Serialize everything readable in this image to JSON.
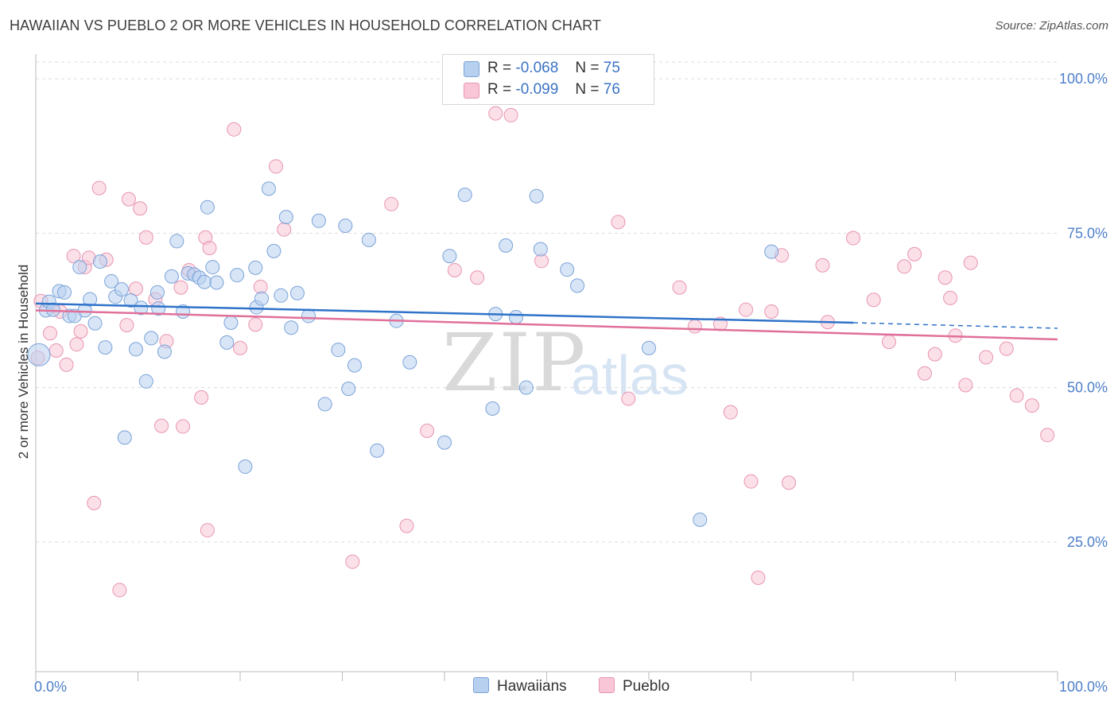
{
  "title": "HAWAIIAN VS PUEBLO 2 OR MORE VEHICLES IN HOUSEHOLD CORRELATION CHART",
  "source": "Source: ZipAtlas.com",
  "watermark": {
    "zip": "ZIP",
    "atlas": "atlas"
  },
  "legend": {
    "rows": [
      {
        "r_label": "R =",
        "r_value": "-0.068",
        "n_label": "N =",
        "n_value": "75"
      },
      {
        "r_label": "R =",
        "r_value": "-0.099",
        "n_label": "N =",
        "n_value": "76"
      }
    ]
  },
  "colors": {
    "hawaiians_fill": "#b8d0f0",
    "hawaiians_stroke": "#7aa3d8",
    "hawaiians_line": "#2f73c9",
    "pueblo_fill": "#f8c6d6",
    "pueblo_stroke": "#e894b2",
    "pueblo_line": "#e0709a",
    "tick_label": "#4d7fc9",
    "grid": "#dcdcdc"
  },
  "chart_data": {
    "type": "scatter",
    "title": "HAWAIIAN VS PUEBLO 2 OR MORE VEHICLES IN HOUSEHOLD CORRELATION CHART",
    "xlabel": "",
    "ylabel": "2 or more Vehicles in Household",
    "xlim": [
      0,
      100
    ],
    "ylim": [
      4,
      104
    ],
    "x_tick_labels": [
      "0.0%",
      "100.0%"
    ],
    "y_ticks": [
      25,
      50,
      75,
      100
    ],
    "y_tick_labels": [
      "25.0%",
      "50.0%",
      "75.0%",
      "100.0%"
    ],
    "grid": true,
    "legend_position": "bottom",
    "series": [
      {
        "name": "Hawaiians",
        "trend": {
          "x": [
            0,
            80
          ],
          "y": [
            63.6,
            60.5
          ],
          "dashed_extension_to_x": 100,
          "dashed_end_y": 59.6
        },
        "points": [
          [
            0.3,
            55.3
          ],
          [
            1.0,
            62.5
          ],
          [
            1.3,
            63.9
          ],
          [
            1.7,
            62.6
          ],
          [
            2.3,
            65.6
          ],
          [
            2.8,
            65.4
          ],
          [
            3.3,
            61.6
          ],
          [
            3.8,
            61.6
          ],
          [
            4.3,
            69.5
          ],
          [
            4.8,
            62.5
          ],
          [
            5.3,
            64.3
          ],
          [
            5.8,
            60.4
          ],
          [
            6.3,
            70.4
          ],
          [
            6.8,
            56.5
          ],
          [
            7.4,
            67.2
          ],
          [
            7.8,
            64.7
          ],
          [
            8.4,
            65.9
          ],
          [
            8.7,
            41.9
          ],
          [
            9.3,
            64.1
          ],
          [
            9.8,
            56.2
          ],
          [
            10.3,
            62.9
          ],
          [
            10.8,
            51.0
          ],
          [
            11.3,
            58.0
          ],
          [
            11.9,
            65.4
          ],
          [
            12.0,
            62.8
          ],
          [
            12.6,
            55.8
          ],
          [
            13.3,
            68.0
          ],
          [
            13.8,
            73.7
          ],
          [
            14.4,
            62.3
          ],
          [
            14.9,
            68.5
          ],
          [
            15.5,
            68.3
          ],
          [
            16.0,
            67.8
          ],
          [
            16.5,
            67.1
          ],
          [
            16.8,
            79.2
          ],
          [
            17.3,
            69.5
          ],
          [
            17.7,
            67.0
          ],
          [
            18.7,
            57.3
          ],
          [
            19.1,
            60.5
          ],
          [
            19.7,
            68.2
          ],
          [
            20.5,
            37.2
          ],
          [
            21.5,
            69.4
          ],
          [
            21.6,
            63.0
          ],
          [
            22.1,
            64.4
          ],
          [
            22.8,
            82.2
          ],
          [
            23.3,
            72.1
          ],
          [
            24.0,
            64.9
          ],
          [
            24.5,
            77.6
          ],
          [
            25.0,
            59.7
          ],
          [
            25.6,
            65.3
          ],
          [
            26.7,
            61.6
          ],
          [
            27.7,
            77.0
          ],
          [
            28.3,
            47.3
          ],
          [
            29.6,
            56.1
          ],
          [
            30.3,
            76.2
          ],
          [
            30.6,
            49.8
          ],
          [
            31.2,
            53.6
          ],
          [
            32.6,
            73.9
          ],
          [
            33.4,
            39.8
          ],
          [
            35.3,
            60.8
          ],
          [
            36.6,
            54.1
          ],
          [
            40.0,
            41.1
          ],
          [
            40.5,
            71.3
          ],
          [
            42.0,
            81.2
          ],
          [
            44.7,
            46.6
          ],
          [
            45.0,
            61.9
          ],
          [
            46.0,
            73.0
          ],
          [
            47.0,
            61.4
          ],
          [
            48.0,
            50.0
          ],
          [
            49.0,
            81.0
          ],
          [
            49.4,
            72.4
          ],
          [
            52.0,
            69.1
          ],
          [
            53.0,
            66.5
          ],
          [
            60.0,
            56.4
          ],
          [
            65.0,
            28.6
          ],
          [
            72.0,
            72.0
          ]
        ]
      },
      {
        "name": "Pueblo",
        "trend": {
          "x": [
            0,
            100
          ],
          "y": [
            62.5,
            57.8
          ]
        },
        "points": [
          [
            0.2,
            54.8
          ],
          [
            0.5,
            64.0
          ],
          [
            1.4,
            58.8
          ],
          [
            2.0,
            56.0
          ],
          [
            2.4,
            62.3
          ],
          [
            3.0,
            53.7
          ],
          [
            3.7,
            71.3
          ],
          [
            4.0,
            57.0
          ],
          [
            4.4,
            59.1
          ],
          [
            4.8,
            69.5
          ],
          [
            5.2,
            71.0
          ],
          [
            5.7,
            31.3
          ],
          [
            6.2,
            82.3
          ],
          [
            6.9,
            70.7
          ],
          [
            8.2,
            17.2
          ],
          [
            8.9,
            60.1
          ],
          [
            9.1,
            80.5
          ],
          [
            9.8,
            66.0
          ],
          [
            10.2,
            79.0
          ],
          [
            10.8,
            74.3
          ],
          [
            11.7,
            64.3
          ],
          [
            12.3,
            43.8
          ],
          [
            12.8,
            57.5
          ],
          [
            14.2,
            66.2
          ],
          [
            14.4,
            43.7
          ],
          [
            15.0,
            69.0
          ],
          [
            16.2,
            48.4
          ],
          [
            16.6,
            74.3
          ],
          [
            16.8,
            26.9
          ],
          [
            17.0,
            72.6
          ],
          [
            19.4,
            91.8
          ],
          [
            20.0,
            56.4
          ],
          [
            21.5,
            60.2
          ],
          [
            22.0,
            66.3
          ],
          [
            23.5,
            85.8
          ],
          [
            24.3,
            75.6
          ],
          [
            31.0,
            21.8
          ],
          [
            34.8,
            79.7
          ],
          [
            36.3,
            27.6
          ],
          [
            38.3,
            43.0
          ],
          [
            41.0,
            69.0
          ],
          [
            43.2,
            67.8
          ],
          [
            45.0,
            94.4
          ],
          [
            46.5,
            94.1
          ],
          [
            57.0,
            76.8
          ],
          [
            58.0,
            48.2
          ],
          [
            63.0,
            66.2
          ],
          [
            64.5,
            59.9
          ],
          [
            67.0,
            60.3
          ],
          [
            68.0,
            46.0
          ],
          [
            69.5,
            62.6
          ],
          [
            70.0,
            34.8
          ],
          [
            70.7,
            19.2
          ],
          [
            72.0,
            62.3
          ],
          [
            73.0,
            71.4
          ],
          [
            73.7,
            34.6
          ],
          [
            77.0,
            69.8
          ],
          [
            77.5,
            60.6
          ],
          [
            80.0,
            74.2
          ],
          [
            82.0,
            64.2
          ],
          [
            83.5,
            57.4
          ],
          [
            85.0,
            69.6
          ],
          [
            86.0,
            71.6
          ],
          [
            87.0,
            52.3
          ],
          [
            88.0,
            55.4
          ],
          [
            89.0,
            67.8
          ],
          [
            89.5,
            64.5
          ],
          [
            90.0,
            58.4
          ],
          [
            91.0,
            50.4
          ],
          [
            91.5,
            70.2
          ],
          [
            93.0,
            54.9
          ],
          [
            95.0,
            56.3
          ],
          [
            96.0,
            48.7
          ],
          [
            97.5,
            47.1
          ],
          [
            99.0,
            42.3
          ],
          [
            49.5,
            70.5
          ]
        ]
      }
    ]
  },
  "bottom_legend": {
    "items": [
      "Hawaiians",
      "Pueblo"
    ]
  }
}
